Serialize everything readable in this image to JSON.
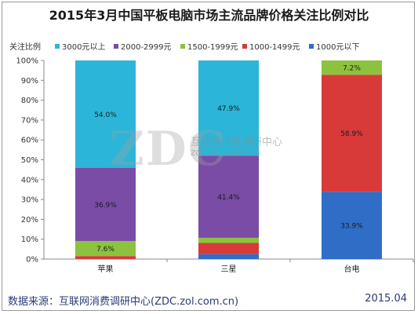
{
  "title": "2015年3月中国平板电脑市场主流品牌价格关注比例对比",
  "watermark": {
    "letters": "ZDC",
    "name": "互联网消费调研中心",
    "url": "zdc.zol.com.cn"
  },
  "footer": {
    "source": "数据来源：互联网消费调研中心(ZDC.zol.com.cn)",
    "date": "2015.04"
  },
  "colors": {
    "3000元以上": "#2bb6d9",
    "2000-2999元": "#7a4ca6",
    "1500-1999元": "#8dc23f",
    "1000-1499元": "#d83a3a",
    "1000元以下": "#2f6dc6"
  },
  "chart_data": {
    "type": "bar",
    "stacked": true,
    "legend_title": "关注比例",
    "categories": [
      "苹果",
      "三星",
      "台电"
    ],
    "series": [
      {
        "name": "3000元以上",
        "values": [
          54.0,
          47.9,
          0
        ]
      },
      {
        "name": "2000-2999元",
        "values": [
          36.9,
          41.4,
          0
        ]
      },
      {
        "name": "1500-1999元",
        "values": [
          7.6,
          2.6,
          7.2
        ]
      },
      {
        "name": "1000-1499元",
        "values": [
          1.5,
          5.6,
          58.9
        ]
      },
      {
        "name": "1000元以下",
        "values": [
          0,
          2.5,
          33.9
        ]
      }
    ],
    "data_labels": [
      [
        "54.0%",
        "36.9%",
        "7.6%",
        "",
        ""
      ],
      [
        "47.9%",
        "41.4%",
        "",
        "",
        ""
      ],
      [
        "",
        "",
        "7.2%",
        "58.9%",
        "33.9%"
      ]
    ],
    "yticks": [
      "0%",
      "10%",
      "20%",
      "30%",
      "40%",
      "50%",
      "60%",
      "70%",
      "80%",
      "90%",
      "100%"
    ],
    "ylim": [
      0,
      100
    ]
  }
}
